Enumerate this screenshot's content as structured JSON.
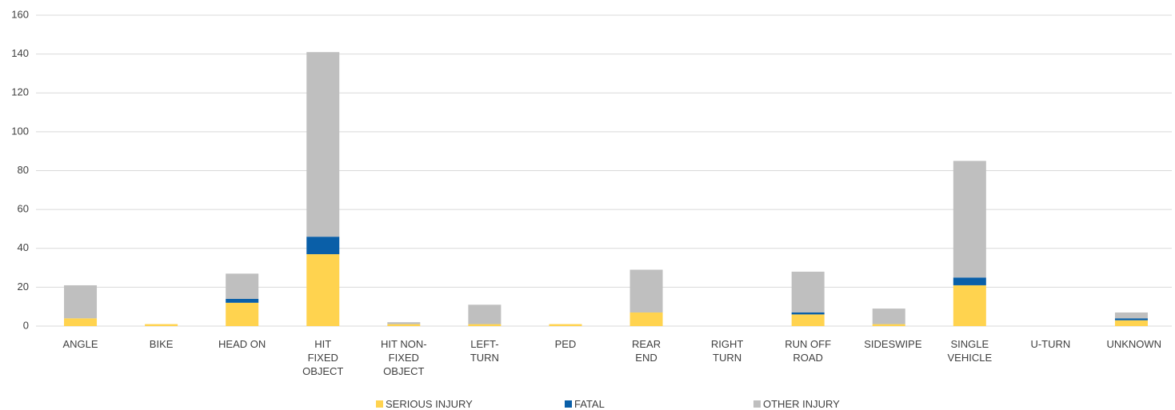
{
  "chart_data": {
    "type": "stacked_bar",
    "categories": [
      "ANGLE",
      "BIKE",
      "HEAD ON",
      "HIT FIXED OBJECT",
      "HIT NON-FIXED OBJECT",
      "LEFT-TURN",
      "PED",
      "REAR END",
      "RIGHT TURN",
      "RUN OFF ROAD",
      "SIDESWIPE",
      "SINGLE VEHICLE",
      "U-TURN",
      "UNKNOWN"
    ],
    "series": [
      {
        "name": "SERIOUS INJURY",
        "color": "#ffd34f",
        "values": [
          4,
          1,
          12,
          37,
          1,
          1,
          1,
          7,
          0,
          6,
          1,
          21,
          0,
          3
        ]
      },
      {
        "name": "FATAL",
        "color": "#0a5fa8",
        "values": [
          0,
          0,
          2,
          9,
          0,
          0,
          0,
          0,
          0,
          1,
          0,
          4,
          0,
          1
        ]
      },
      {
        "name": "OTHER INJURY",
        "color": "#bfbfbf",
        "values": [
          17,
          0,
          13,
          95,
          1,
          10,
          0,
          22,
          0,
          21,
          8,
          60,
          0,
          3
        ]
      }
    ],
    "ylim": [
      0,
      160
    ],
    "yticks": [
      0,
      20,
      40,
      60,
      80,
      100,
      120,
      140,
      160
    ],
    "grid": true,
    "legend": "bottom"
  }
}
